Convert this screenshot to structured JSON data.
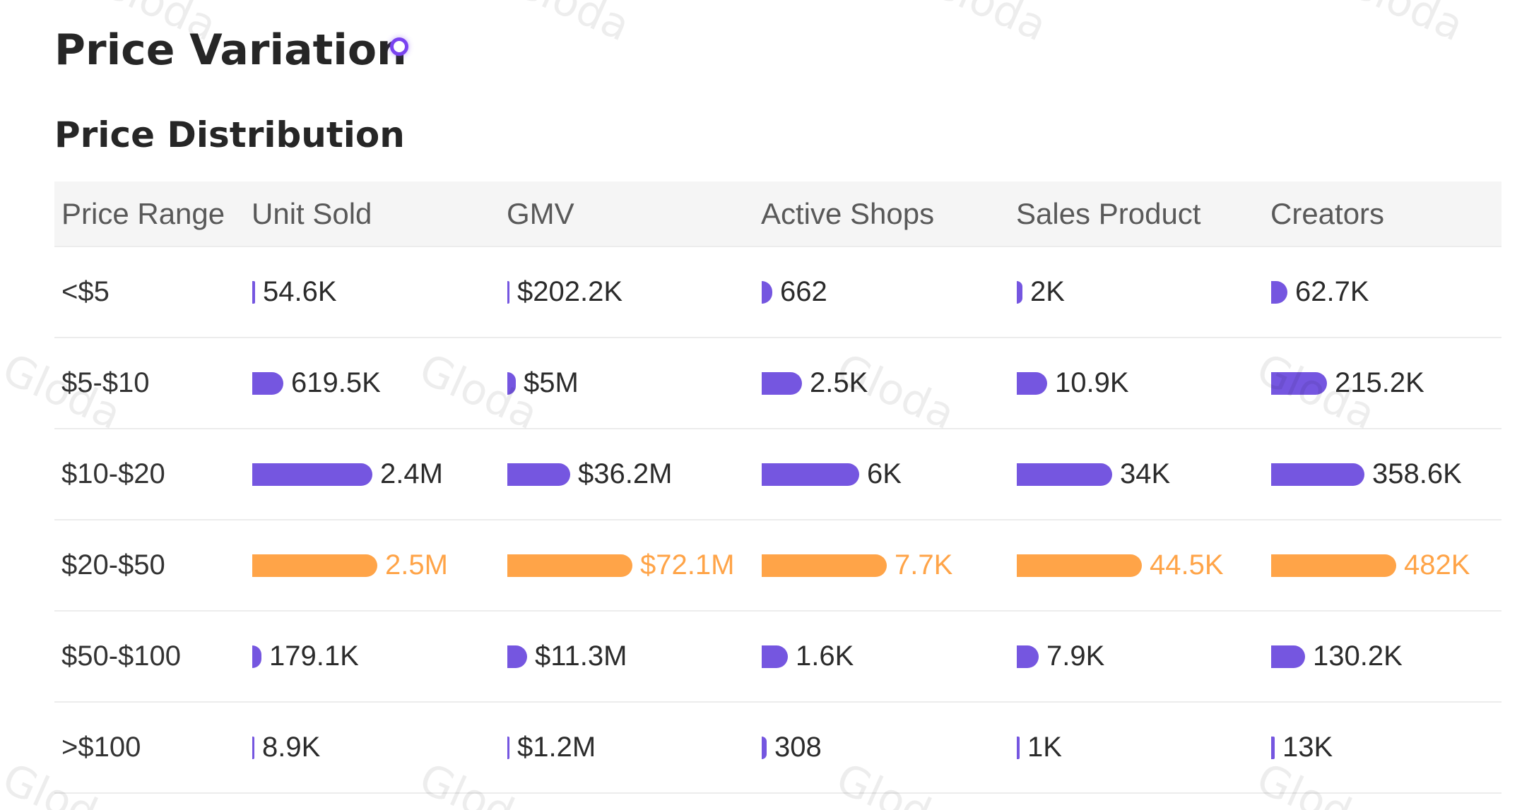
{
  "header": {
    "title": "Price Variation",
    "subtitle": "Price Distribution"
  },
  "colors": {
    "bar": "#7556e0",
    "highlight": "#ffa448",
    "accent_dot": "#7a43f0",
    "header_bg": "#f5f5f5"
  },
  "watermark": "Gloda",
  "chart_data": {
    "type": "table",
    "columns": [
      "Price Range",
      "Unit Sold",
      "GMV",
      "Active Shops",
      "Sales Product",
      "Creators"
    ],
    "highlight_row": 3,
    "rows": [
      {
        "range": "<$5",
        "cells": [
          {
            "label": "54.6K",
            "value": 54600
          },
          {
            "label": "$202.2K",
            "value": 202200
          },
          {
            "label": "662",
            "value": 662
          },
          {
            "label": "2K",
            "value": 2000
          },
          {
            "label": "62.7K",
            "value": 62700
          }
        ]
      },
      {
        "range": "$5-$10",
        "cells": [
          {
            "label": "619.5K",
            "value": 619500
          },
          {
            "label": "$5M",
            "value": 5000000
          },
          {
            "label": "2.5K",
            "value": 2500
          },
          {
            "label": "10.9K",
            "value": 10900
          },
          {
            "label": "215.2K",
            "value": 215200
          }
        ]
      },
      {
        "range": "$10-$20",
        "cells": [
          {
            "label": "2.4M",
            "value": 2400000
          },
          {
            "label": "$36.2M",
            "value": 36200000
          },
          {
            "label": "6K",
            "value": 6000
          },
          {
            "label": "34K",
            "value": 34000
          },
          {
            "label": "358.6K",
            "value": 358600
          }
        ]
      },
      {
        "range": "$20-$50",
        "cells": [
          {
            "label": "2.5M",
            "value": 2500000
          },
          {
            "label": "$72.1M",
            "value": 72100000
          },
          {
            "label": "7.7K",
            "value": 7700
          },
          {
            "label": "44.5K",
            "value": 44500
          },
          {
            "label": "482K",
            "value": 482000
          }
        ]
      },
      {
        "range": "$50-$100",
        "cells": [
          {
            "label": "179.1K",
            "value": 179100
          },
          {
            "label": "$11.3M",
            "value": 11300000
          },
          {
            "label": "1.6K",
            "value": 1600
          },
          {
            "label": "7.9K",
            "value": 7900
          },
          {
            "label": "130.2K",
            "value": 130200
          }
        ]
      },
      {
        "range": ">$100",
        "cells": [
          {
            "label": "8.9K",
            "value": 8900
          },
          {
            "label": "$1.2M",
            "value": 1200000
          },
          {
            "label": "308",
            "value": 308
          },
          {
            "label": "1K",
            "value": 1000
          },
          {
            "label": "13K",
            "value": 13000
          }
        ]
      }
    ]
  }
}
